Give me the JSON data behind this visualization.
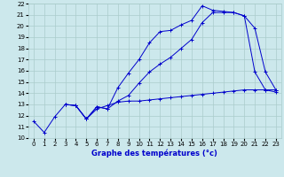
{
  "xlabel": "Graphe des températures (°c)",
  "bg_color": "#cce8ec",
  "grid_color": "#aacccc",
  "line_color": "#0000cc",
  "xlim": [
    -0.5,
    23.5
  ],
  "ylim": [
    10,
    22
  ],
  "xticks": [
    0,
    1,
    2,
    3,
    4,
    5,
    6,
    7,
    8,
    9,
    10,
    11,
    12,
    13,
    14,
    15,
    16,
    17,
    18,
    19,
    20,
    21,
    22,
    23
  ],
  "yticks": [
    10,
    11,
    12,
    13,
    14,
    15,
    16,
    17,
    18,
    19,
    20,
    21,
    22
  ],
  "line1_x": [
    0,
    1,
    2,
    3,
    4,
    5,
    6,
    7,
    8,
    9,
    10,
    11,
    12,
    13,
    14,
    15,
    16,
    17,
    18,
    19,
    20,
    21,
    22,
    23
  ],
  "line1_y": [
    11.5,
    10.5,
    11.9,
    13.0,
    12.9,
    11.7,
    12.6,
    12.9,
    13.2,
    13.3,
    13.3,
    13.4,
    13.5,
    13.6,
    13.7,
    13.8,
    13.9,
    14.0,
    14.1,
    14.2,
    14.3,
    14.3,
    14.3,
    14.3
  ],
  "line2_x": [
    0,
    1,
    2,
    3,
    4,
    5,
    6,
    7,
    8,
    9,
    10,
    11,
    12,
    13,
    14,
    15,
    16,
    17,
    18,
    19,
    20,
    21,
    22,
    23
  ],
  "line2_y": [
    null,
    null,
    null,
    13.0,
    12.9,
    11.7,
    12.8,
    12.6,
    14.5,
    15.8,
    17.0,
    18.5,
    19.5,
    19.6,
    20.1,
    20.5,
    21.8,
    21.4,
    21.3,
    21.2,
    20.9,
    19.8,
    15.9,
    14.3
  ],
  "line3_x": [
    0,
    1,
    2,
    3,
    4,
    5,
    6,
    7,
    8,
    9,
    10,
    11,
    12,
    13,
    14,
    15,
    16,
    17,
    18,
    19,
    20,
    21,
    22,
    23
  ],
  "line3_y": [
    null,
    null,
    null,
    13.0,
    12.9,
    11.7,
    12.8,
    12.6,
    13.3,
    13.8,
    14.9,
    15.9,
    16.6,
    17.2,
    18.0,
    18.8,
    20.3,
    21.2,
    21.2,
    21.2,
    20.9,
    15.9,
    14.3,
    14.1
  ]
}
